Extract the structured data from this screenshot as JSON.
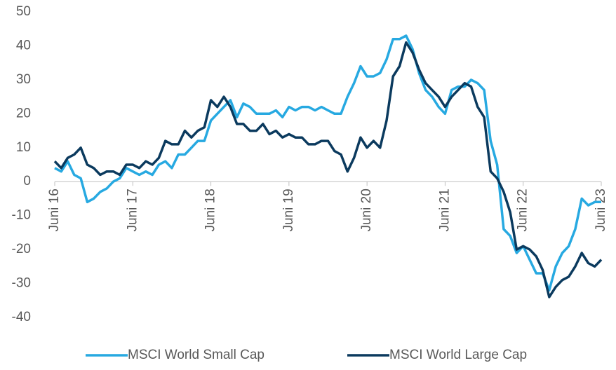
{
  "chart_data": {
    "type": "line",
    "categories": [
      "Juni 16",
      null,
      null,
      null,
      null,
      null,
      null,
      null,
      null,
      null,
      null,
      null,
      "Juni 17",
      null,
      null,
      null,
      null,
      null,
      null,
      null,
      null,
      null,
      null,
      null,
      "Juni 18",
      null,
      null,
      null,
      null,
      null,
      null,
      null,
      null,
      null,
      null,
      null,
      "Juni 19",
      null,
      null,
      null,
      null,
      null,
      null,
      null,
      null,
      null,
      null,
      null,
      "Juni 20",
      null,
      null,
      null,
      null,
      null,
      null,
      null,
      null,
      null,
      null,
      null,
      "Juni 21",
      null,
      null,
      null,
      null,
      null,
      null,
      null,
      null,
      null,
      null,
      null,
      "Juni 22",
      null,
      null,
      null,
      null,
      null,
      null,
      null,
      null,
      null,
      null,
      null,
      "Juni 23"
    ],
    "series": [
      {
        "name": "MSCI World Small Cap",
        "color": "#27a9e1",
        "values": [
          4,
          3,
          6,
          2,
          1,
          -6,
          -5,
          -3,
          -2,
          0,
          1,
          4,
          3,
          2,
          3,
          2,
          5,
          6,
          4,
          8,
          8,
          10,
          12,
          12,
          18,
          20,
          22,
          24,
          19,
          23,
          22,
          20,
          20,
          20,
          21,
          19,
          22,
          21,
          22,
          22,
          21,
          22,
          21,
          20,
          20,
          25,
          29,
          34,
          31,
          31,
          32,
          36,
          42,
          42,
          43,
          39,
          32,
          27,
          25,
          22,
          20,
          27,
          28,
          28,
          30,
          29,
          27,
          12,
          5,
          -14,
          -16,
          -21,
          -19,
          -23,
          -27,
          -27,
          -32,
          -25,
          -21,
          -19,
          -14,
          -5,
          -7,
          -6,
          -6
        ]
      },
      {
        "name": "MSCI World Large Cap",
        "color": "#0b3a5e",
        "values": [
          6,
          4,
          7,
          8,
          10,
          5,
          4,
          2,
          3,
          3,
          2,
          5,
          5,
          4,
          6,
          5,
          7,
          12,
          11,
          11,
          15,
          13,
          15,
          16,
          24,
          22,
          25,
          22,
          17,
          17,
          15,
          15,
          17,
          14,
          15,
          13,
          14,
          13,
          13,
          11,
          11,
          12,
          12,
          9,
          8,
          3,
          7,
          13,
          10,
          12,
          10,
          18,
          31,
          34,
          41,
          38,
          33,
          29,
          27,
          25,
          22,
          25,
          27,
          29,
          28,
          22,
          19,
          3,
          1,
          -3,
          -9,
          -20,
          -19,
          -20,
          -22,
          -26,
          -34,
          -31,
          -29,
          -28,
          -25,
          -21,
          -24,
          -25,
          -23
        ]
      }
    ],
    "ylim": [
      -40,
      50
    ],
    "yticks": [
      -40,
      -30,
      -20,
      -10,
      0,
      10,
      20,
      30,
      40,
      50
    ],
    "grid": false,
    "legend": "bottom"
  }
}
